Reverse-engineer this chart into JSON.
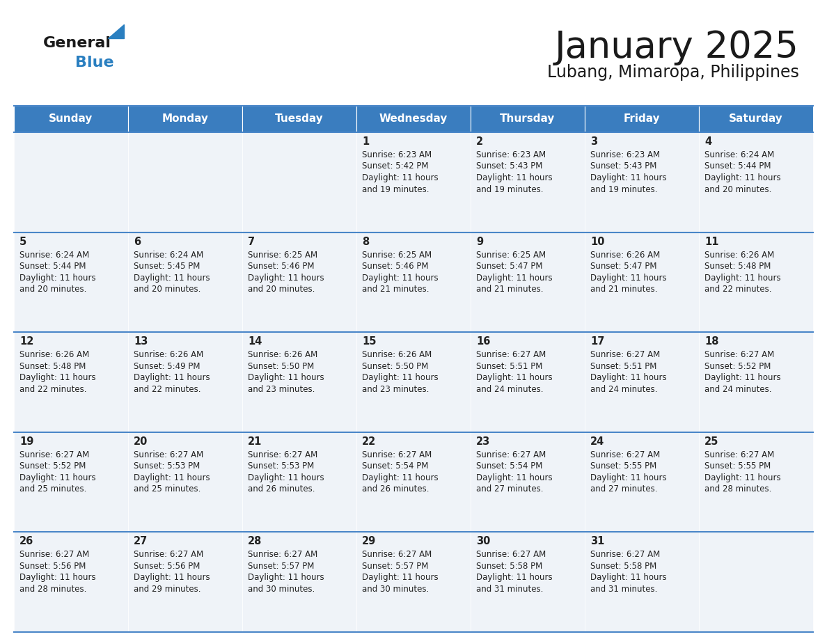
{
  "title": "January 2025",
  "subtitle": "Lubang, Mimaropa, Philippines",
  "header_bg": "#3a7dbf",
  "header_text_color": "#ffffff",
  "day_names": [
    "Sunday",
    "Monday",
    "Tuesday",
    "Wednesday",
    "Thursday",
    "Friday",
    "Saturday"
  ],
  "row_bg": "#eff3f8",
  "cell_border_color": "#4a86c8",
  "day_number_color": "#222222",
  "text_color": "#222222",
  "calendar": [
    [
      null,
      null,
      null,
      {
        "day": 1,
        "sunrise": "6:23 AM",
        "sunset": "5:42 PM",
        "daylight": "11 hours and 19 minutes."
      },
      {
        "day": 2,
        "sunrise": "6:23 AM",
        "sunset": "5:43 PM",
        "daylight": "11 hours and 19 minutes."
      },
      {
        "day": 3,
        "sunrise": "6:23 AM",
        "sunset": "5:43 PM",
        "daylight": "11 hours and 19 minutes."
      },
      {
        "day": 4,
        "sunrise": "6:24 AM",
        "sunset": "5:44 PM",
        "daylight": "11 hours and 20 minutes."
      }
    ],
    [
      {
        "day": 5,
        "sunrise": "6:24 AM",
        "sunset": "5:44 PM",
        "daylight": "11 hours and 20 minutes."
      },
      {
        "day": 6,
        "sunrise": "6:24 AM",
        "sunset": "5:45 PM",
        "daylight": "11 hours and 20 minutes."
      },
      {
        "day": 7,
        "sunrise": "6:25 AM",
        "sunset": "5:46 PM",
        "daylight": "11 hours and 20 minutes."
      },
      {
        "day": 8,
        "sunrise": "6:25 AM",
        "sunset": "5:46 PM",
        "daylight": "11 hours and 21 minutes."
      },
      {
        "day": 9,
        "sunrise": "6:25 AM",
        "sunset": "5:47 PM",
        "daylight": "11 hours and 21 minutes."
      },
      {
        "day": 10,
        "sunrise": "6:26 AM",
        "sunset": "5:47 PM",
        "daylight": "11 hours and 21 minutes."
      },
      {
        "day": 11,
        "sunrise": "6:26 AM",
        "sunset": "5:48 PM",
        "daylight": "11 hours and 22 minutes."
      }
    ],
    [
      {
        "day": 12,
        "sunrise": "6:26 AM",
        "sunset": "5:48 PM",
        "daylight": "11 hours and 22 minutes."
      },
      {
        "day": 13,
        "sunrise": "6:26 AM",
        "sunset": "5:49 PM",
        "daylight": "11 hours and 22 minutes."
      },
      {
        "day": 14,
        "sunrise": "6:26 AM",
        "sunset": "5:50 PM",
        "daylight": "11 hours and 23 minutes."
      },
      {
        "day": 15,
        "sunrise": "6:26 AM",
        "sunset": "5:50 PM",
        "daylight": "11 hours and 23 minutes."
      },
      {
        "day": 16,
        "sunrise": "6:27 AM",
        "sunset": "5:51 PM",
        "daylight": "11 hours and 24 minutes."
      },
      {
        "day": 17,
        "sunrise": "6:27 AM",
        "sunset": "5:51 PM",
        "daylight": "11 hours and 24 minutes."
      },
      {
        "day": 18,
        "sunrise": "6:27 AM",
        "sunset": "5:52 PM",
        "daylight": "11 hours and 24 minutes."
      }
    ],
    [
      {
        "day": 19,
        "sunrise": "6:27 AM",
        "sunset": "5:52 PM",
        "daylight": "11 hours and 25 minutes."
      },
      {
        "day": 20,
        "sunrise": "6:27 AM",
        "sunset": "5:53 PM",
        "daylight": "11 hours and 25 minutes."
      },
      {
        "day": 21,
        "sunrise": "6:27 AM",
        "sunset": "5:53 PM",
        "daylight": "11 hours and 26 minutes."
      },
      {
        "day": 22,
        "sunrise": "6:27 AM",
        "sunset": "5:54 PM",
        "daylight": "11 hours and 26 minutes."
      },
      {
        "day": 23,
        "sunrise": "6:27 AM",
        "sunset": "5:54 PM",
        "daylight": "11 hours and 27 minutes."
      },
      {
        "day": 24,
        "sunrise": "6:27 AM",
        "sunset": "5:55 PM",
        "daylight": "11 hours and 27 minutes."
      },
      {
        "day": 25,
        "sunrise": "6:27 AM",
        "sunset": "5:55 PM",
        "daylight": "11 hours and 28 minutes."
      }
    ],
    [
      {
        "day": 26,
        "sunrise": "6:27 AM",
        "sunset": "5:56 PM",
        "daylight": "11 hours and 28 minutes."
      },
      {
        "day": 27,
        "sunrise": "6:27 AM",
        "sunset": "5:56 PM",
        "daylight": "11 hours and 29 minutes."
      },
      {
        "day": 28,
        "sunrise": "6:27 AM",
        "sunset": "5:57 PM",
        "daylight": "11 hours and 30 minutes."
      },
      {
        "day": 29,
        "sunrise": "6:27 AM",
        "sunset": "5:57 PM",
        "daylight": "11 hours and 30 minutes."
      },
      {
        "day": 30,
        "sunrise": "6:27 AM",
        "sunset": "5:58 PM",
        "daylight": "11 hours and 31 minutes."
      },
      {
        "day": 31,
        "sunrise": "6:27 AM",
        "sunset": "5:58 PM",
        "daylight": "11 hours and 31 minutes."
      },
      null
    ]
  ],
  "logo_general_color": "#1a1a1a",
  "logo_blue_color": "#2a7fc0",
  "logo_triangle_color": "#2a7fc0"
}
